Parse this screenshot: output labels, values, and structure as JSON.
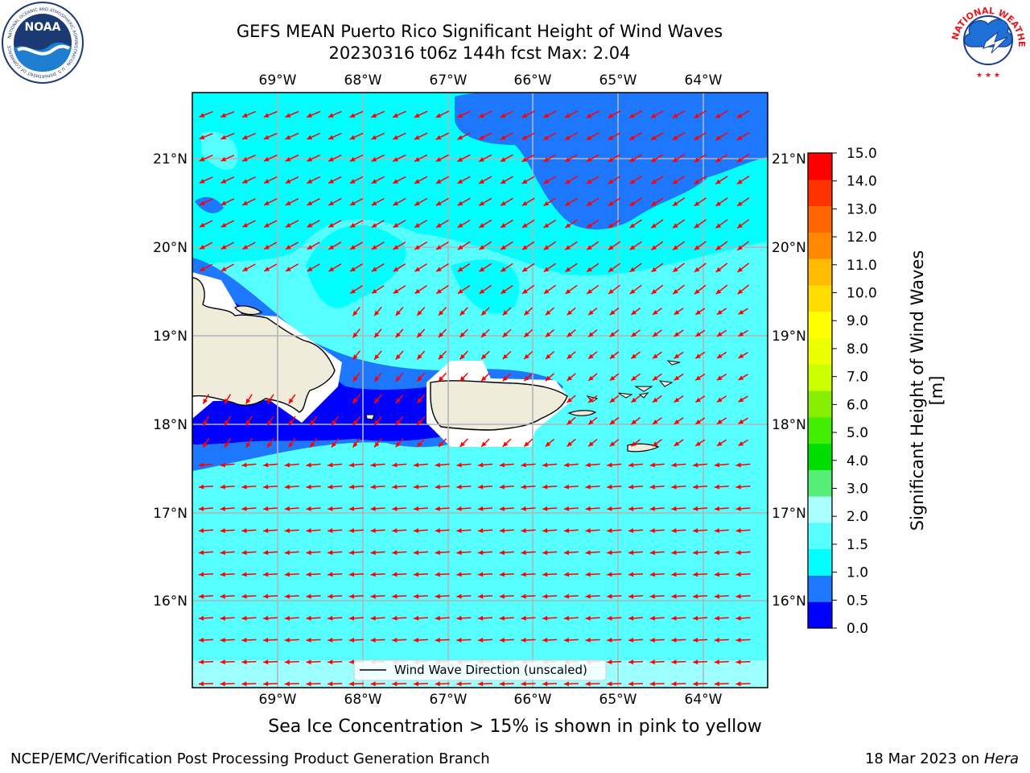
{
  "title": {
    "line1": "GEFS MEAN Puerto Rico Significant Height of Wind Waves",
    "line2": "20230316 t06z 144h fcst   Max: 2.04"
  },
  "map": {
    "lon_labels": [
      "69°W",
      "68°W",
      "67°W",
      "66°W",
      "65°W",
      "64°W"
    ],
    "lat_labels": [
      "21°N",
      "20°N",
      "19°N",
      "18°N",
      "17°N",
      "16°N"
    ],
    "legend_label": "Wind Wave Direction (unscaled)",
    "arrow_color": "#ff0000",
    "land_color": "#efecdc"
  },
  "colorbar": {
    "label": "Significant Height of Wind Waves [m]",
    "ticks": [
      "0.0",
      "0.5",
      "1.0",
      "1.5",
      "2.0",
      "3.0",
      "4.0",
      "5.0",
      "6.0",
      "7.0",
      "8.0",
      "9.0",
      "10.0",
      "11.0",
      "12.0",
      "13.0",
      "14.0",
      "15.0"
    ],
    "colors": [
      "#0000ff",
      "#1e78ff",
      "#00ffff",
      "#55ffff",
      "#aaffff",
      "#55ee77",
      "#00dd00",
      "#44ee00",
      "#88ee00",
      "#ccff00",
      "#eeff00",
      "#ffff00",
      "#ffdd00",
      "#ffbb00",
      "#ff8800",
      "#ff6600",
      "#ff3300",
      "#ff0000"
    ]
  },
  "logos": {
    "noaa_text": "NOAA",
    "noaa_ring_text": "NATIONAL OCEANIC AND ATMOSPHERIC ADMINISTRATION · U.S. DEPARTMENT OF COMMERCE",
    "nws_ring_text": "NATIONAL WEATHER SERVICE"
  },
  "notes": {
    "sea_ice": "Sea Ice Concentration > 15% is shown in pink to yellow"
  },
  "footer": {
    "left": "NCEP/EMC/Verification Post Processing Product Generation Branch",
    "date": "18 Mar 2023 on ",
    "machine": "Hera"
  }
}
